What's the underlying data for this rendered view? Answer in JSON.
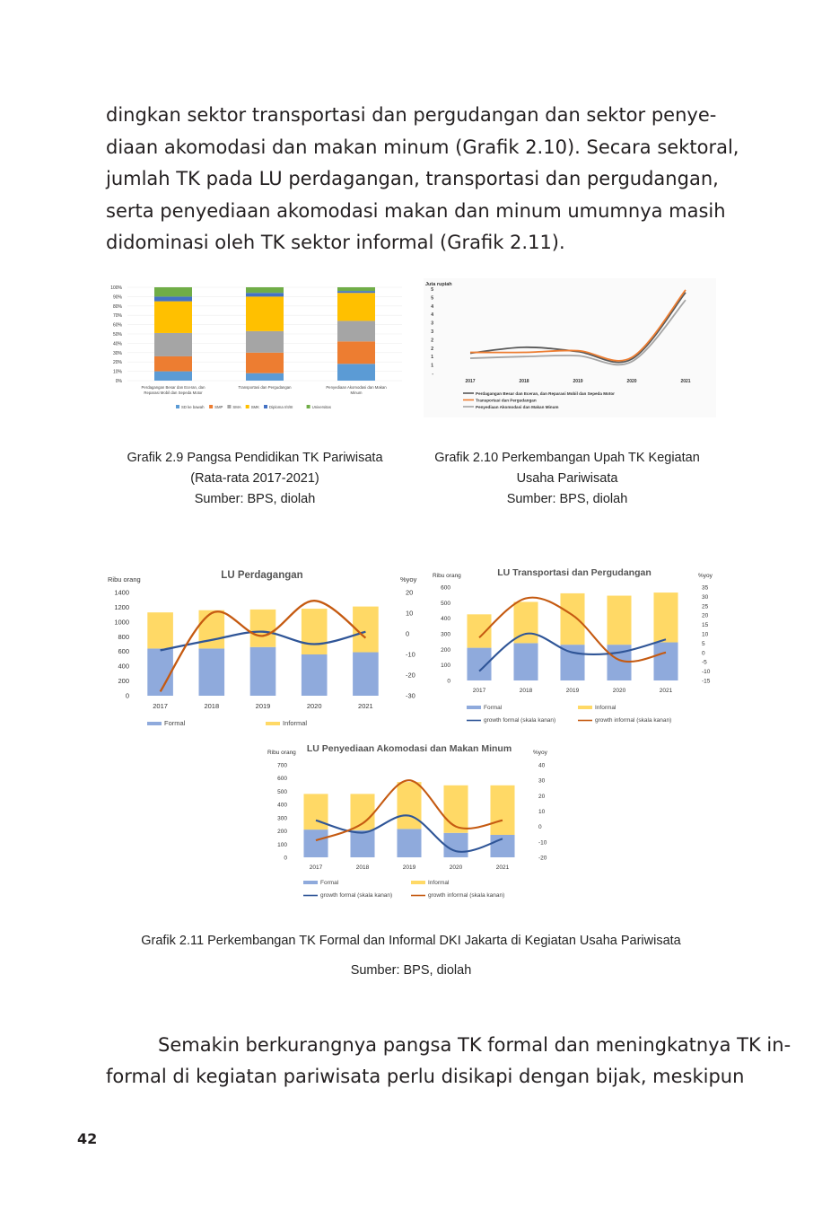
{
  "paragraph_top": [
    "dingkan sektor transportasi dan pergudangan dan sektor penye-",
    "diaan akomodasi dan makan minum (Grafik 2.10). Secara sektoral,",
    "jumlah TK pada LU perdagangan, transportasi dan pergudangan,",
    "serta penyediaan akomodasi makan dan minum umumnya masih",
    "didominasi oleh TK sektor informal (Grafik 2.11)."
  ],
  "caption_2_9": [
    "Grafik 2.9 Pangsa Pendidikan TK Pariwisata",
    "(Rata-rata 2017-2021)",
    "Sumber: BPS, diolah"
  ],
  "caption_2_10": [
    "Grafik 2.10 Perkembangan Upah TK Kegiatan",
    "Usaha Pariwisata",
    "Sumber: BPS, diolah"
  ],
  "caption_2_11": [
    "Grafik 2.11 Perkembangan TK Formal dan Informal DKI Jakarta di Kegiatan Usaha Pariwisata",
    "Sumber: BPS, diolah"
  ],
  "paragraph_bottom": [
    "Semakin berkurangnya pangsa TK formal dan meningkatnya TK in-",
    "formal di kegiatan pariwisata perlu disikapi dengan bijak, meskipun"
  ],
  "page_number": "42",
  "colors": {
    "sd": "#5b9bd5",
    "smp": "#ed7d31",
    "sma": "#a5a5a5",
    "smk": "#ffc000",
    "diploma": "#4472c4",
    "univ": "#70ad47",
    "formal": "#8faadc",
    "informal": "#ffd966",
    "growth_formal": "#2f5597",
    "growth_informal": "#c55a11",
    "upah_perdagangan": "#595959",
    "upah_transport": "#ed7d31",
    "upah_akomodasi": "#a5a5a5"
  },
  "chart_data": [
    {
      "id": "grafik_2_9",
      "type": "bar",
      "stacked": true,
      "categories": [
        [
          "Perdagangan Besar dan Eceran, dan",
          "Reparasi Mobil dan Sepeda Motor"
        ],
        [
          "Transportasi dan Pergudangan"
        ],
        [
          "Penyediaan Akomodasi dan Makan",
          "Minum"
        ]
      ],
      "series": [
        {
          "name": "SD ke bawah",
          "values": [
            10,
            8,
            18
          ]
        },
        {
          "name": "SMP",
          "values": [
            16,
            22,
            24
          ]
        },
        {
          "name": "SMA",
          "values": [
            25,
            23,
            22
          ]
        },
        {
          "name": "SMK",
          "values": [
            34,
            37,
            30
          ]
        },
        {
          "name": "Diploma I/II/III",
          "values": [
            5,
            4,
            2
          ]
        },
        {
          "name": "Universitas",
          "values": [
            10,
            6,
            4
          ]
        }
      ],
      "ylim": [
        0,
        100
      ],
      "yticks": [
        "0%",
        "10%",
        "20%",
        "30%",
        "40%",
        "50%",
        "60%",
        "70%",
        "80%",
        "90%",
        "100%"
      ],
      "legend": "bottom"
    },
    {
      "id": "grafik_2_10",
      "type": "line",
      "ylabel": "Juta rupiah",
      "x": [
        "2017",
        "2018",
        "2019",
        "2020",
        "2021"
      ],
      "ylim": [
        0,
        5
      ],
      "yticks": [
        "-",
        "1",
        "1",
        "2",
        "2",
        "3",
        "3",
        "4",
        "4",
        "5",
        "5"
      ],
      "series": [
        {
          "name": "Perdagangan Besar dan Eceran, dan Reparasi Mobil dan Sepeda Motor",
          "values": [
            1.2,
            1.55,
            1.3,
            0.85,
            4.8
          ]
        },
        {
          "name": "Transportasi dan Pergudangan",
          "values": [
            1.25,
            1.25,
            1.35,
            0.95,
            4.95
          ]
        },
        {
          "name": "Penyediaan Akomodasi dan Makan Minum",
          "values": [
            0.9,
            1.0,
            1.05,
            0.7,
            4.35
          ]
        }
      ],
      "legend": "bottom"
    },
    {
      "id": "lu_perdagangan",
      "type": "bar",
      "title": "LU Perdagangan",
      "ylabel": "Ribu orang",
      "y2label": "%yoy",
      "x": [
        "2017",
        "2018",
        "2019",
        "2020",
        "2021"
      ],
      "ylim": [
        0,
        1400
      ],
      "yticks": [
        0,
        200,
        400,
        600,
        800,
        1000,
        1200,
        1400
      ],
      "y2lim": [
        -30,
        20
      ],
      "y2ticks": [
        -30,
        -20,
        -10,
        0,
        10,
        20
      ],
      "series": [
        {
          "name": "Formal",
          "kind": "bar",
          "values": [
            640,
            640,
            660,
            560,
            590
          ]
        },
        {
          "name": "Informal",
          "kind": "bar",
          "values": [
            490,
            520,
            510,
            620,
            620
          ]
        },
        {
          "name": "growth formal (skala kanan)",
          "kind": "line",
          "axis": "right",
          "values": [
            -8,
            -3,
            1,
            -5,
            1
          ]
        },
        {
          "name": "growth informal (skala kanan)",
          "kind": "line",
          "axis": "right",
          "values": [
            -28,
            10,
            -1,
            16,
            -2
          ]
        }
      ],
      "legend_labels": [
        "Formal",
        "Informal"
      ],
      "legend": "bottom"
    },
    {
      "id": "lu_transportasi",
      "type": "bar",
      "title": "LU Transportasi dan Pergudangan",
      "ylabel": "Ribu orang",
      "y2label": "%yoy",
      "x": [
        "2017",
        "2018",
        "2019",
        "2020",
        "2021"
      ],
      "ylim": [
        0,
        600
      ],
      "yticks": [
        0,
        100,
        200,
        300,
        400,
        500,
        600
      ],
      "y2lim": [
        -15,
        35
      ],
      "y2ticks": [
        -15,
        -10,
        -5,
        0,
        5,
        10,
        15,
        20,
        25,
        30,
        35
      ],
      "series": [
        {
          "name": "Formal",
          "kind": "bar",
          "values": [
            210,
            240,
            230,
            230,
            245
          ]
        },
        {
          "name": "Informal",
          "kind": "bar",
          "values": [
            215,
            265,
            330,
            315,
            320
          ]
        },
        {
          "name": "growth formal (skala kanan)",
          "kind": "line",
          "axis": "right",
          "values": [
            -10,
            10,
            0,
            0,
            7
          ]
        },
        {
          "name": "growth informal (skala kanan)",
          "kind": "line",
          "axis": "right",
          "values": [
            8,
            29,
            20,
            -4,
            0
          ]
        }
      ],
      "legend_labels": [
        "Formal",
        "Informal",
        "growth formal (skala kanan)",
        "growth informal (skala kanan)"
      ],
      "legend": "bottom"
    },
    {
      "id": "lu_akomodasi",
      "type": "bar",
      "title": "LU Penyediaan Akomodasi dan Makan Minum",
      "ylabel": "Ribu orang",
      "y2label": "%yoy",
      "x": [
        "2017",
        "2018",
        "2019",
        "2020",
        "2021"
      ],
      "ylim": [
        0,
        700
      ],
      "yticks": [
        0,
        100,
        200,
        300,
        400,
        500,
        600,
        700
      ],
      "y2lim": [
        -20,
        40
      ],
      "y2ticks": [
        -20,
        -10,
        0,
        10,
        20,
        30,
        40
      ],
      "series": [
        {
          "name": "Formal",
          "kind": "bar",
          "values": [
            210,
            205,
            215,
            185,
            170
          ]
        },
        {
          "name": "Informal",
          "kind": "bar",
          "values": [
            270,
            275,
            355,
            360,
            375
          ]
        },
        {
          "name": "growth formal (skala kanan)",
          "kind": "line",
          "axis": "right",
          "values": [
            4,
            -4,
            7,
            -16,
            -8
          ]
        },
        {
          "name": "growth informal (skala kanan)",
          "kind": "line",
          "axis": "right",
          "values": [
            -9,
            2,
            30,
            0,
            4
          ]
        }
      ],
      "legend_labels": [
        "Formal",
        "Informal",
        "growth formal (skala kanan)",
        "growth informal (skala kanan)"
      ],
      "legend": "bottom"
    }
  ]
}
